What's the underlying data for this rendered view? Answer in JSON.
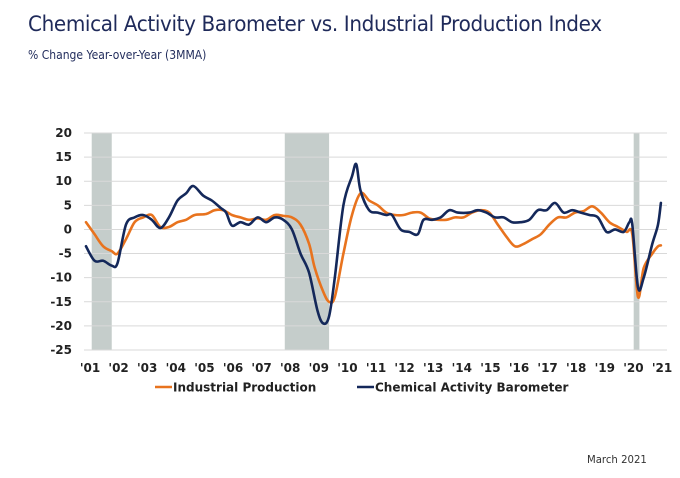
{
  "header": {
    "title": "Chemical Activity Barometer vs. Industrial Production Index",
    "subtitle": "% Change Year-over-Year (3MMA)"
  },
  "footer": {
    "date": "March 2021"
  },
  "chart_data": {
    "type": "line",
    "title": "Chemical Activity Barometer vs. Industrial Production Index",
    "subtitle": "% Change Year-over-Year (3MMA)",
    "xlabel": "",
    "ylabel": "",
    "ylim": [
      -25,
      20
    ],
    "xlim": [
      2001.0,
      2021.2
    ],
    "yticks": [
      20,
      15,
      10,
      5,
      0,
      -5,
      -10,
      -15,
      -20,
      -25
    ],
    "ytick_labels": [
      "20",
      "15",
      "10",
      "5",
      "0",
      "-5",
      "-10",
      "-15",
      "-20",
      "-25"
    ],
    "xticks": [
      2001,
      2002,
      2003,
      2004,
      2005,
      2006,
      2007,
      2008,
      2009,
      2010,
      2011,
      2012,
      2013,
      2014,
      2015,
      2016,
      2017,
      2018,
      2019,
      2020,
      2021
    ],
    "xtick_labels": [
      "'01",
      "'02",
      "'03",
      "'04",
      "'05",
      "'06",
      "'07",
      "'08",
      "'09",
      "'10",
      "'11",
      "'12",
      "'13",
      "'14",
      "'15",
      "'16",
      "'17",
      "'18",
      "'19",
      "'20",
      "'21"
    ],
    "grid": true,
    "legend_position": "bottom",
    "recessions": [
      {
        "start": 2001.2,
        "end": 2001.9
      },
      {
        "start": 2007.95,
        "end": 2009.5
      },
      {
        "start": 2020.15,
        "end": 2020.35
      }
    ],
    "colors": {
      "recession": "#c5cdcb",
      "grid": "#d9d9d9"
    },
    "series": [
      {
        "name": "Industrial Production",
        "color": "#e8731e",
        "points": [
          [
            2001.0,
            1.5
          ],
          [
            2001.3,
            -1
          ],
          [
            2001.6,
            -3.5
          ],
          [
            2001.9,
            -4.5
          ],
          [
            2002.1,
            -5
          ],
          [
            2002.4,
            -2
          ],
          [
            2002.7,
            1.5
          ],
          [
            2003.0,
            2.5
          ],
          [
            2003.3,
            3
          ],
          [
            2003.6,
            0.5
          ],
          [
            2003.9,
            0.5
          ],
          [
            2004.2,
            1.5
          ],
          [
            2004.5,
            2
          ],
          [
            2004.8,
            3
          ],
          [
            2005.2,
            3.2
          ],
          [
            2005.5,
            4
          ],
          [
            2005.8,
            4
          ],
          [
            2006.1,
            3
          ],
          [
            2006.4,
            2.5
          ],
          [
            2006.7,
            2
          ],
          [
            2007.0,
            2.3
          ],
          [
            2007.3,
            2
          ],
          [
            2007.6,
            3
          ],
          [
            2007.9,
            2.8
          ],
          [
            2008.2,
            2.5
          ],
          [
            2008.5,
            1
          ],
          [
            2008.8,
            -3
          ],
          [
            2009.0,
            -8
          ],
          [
            2009.3,
            -13
          ],
          [
            2009.5,
            -15
          ],
          [
            2009.7,
            -14
          ],
          [
            2010.0,
            -5
          ],
          [
            2010.3,
            3
          ],
          [
            2010.6,
            7.5
          ],
          [
            2010.9,
            6
          ],
          [
            2011.2,
            5
          ],
          [
            2011.5,
            3.5
          ],
          [
            2011.8,
            3
          ],
          [
            2012.1,
            3
          ],
          [
            2012.4,
            3.5
          ],
          [
            2012.7,
            3.5
          ],
          [
            2013.0,
            2.3
          ],
          [
            2013.3,
            2
          ],
          [
            2013.6,
            2
          ],
          [
            2013.9,
            2.5
          ],
          [
            2014.2,
            2.5
          ],
          [
            2014.5,
            3.5
          ],
          [
            2014.8,
            4
          ],
          [
            2015.1,
            3.5
          ],
          [
            2015.4,
            1
          ],
          [
            2015.7,
            -1.5
          ],
          [
            2016.0,
            -3.5
          ],
          [
            2016.3,
            -3
          ],
          [
            2016.6,
            -2
          ],
          [
            2016.9,
            -1
          ],
          [
            2017.2,
            1
          ],
          [
            2017.5,
            2.5
          ],
          [
            2017.8,
            2.5
          ],
          [
            2018.1,
            3.5
          ],
          [
            2018.4,
            3.8
          ],
          [
            2018.7,
            4.8
          ],
          [
            2019.0,
            3.5
          ],
          [
            2019.3,
            1.5
          ],
          [
            2019.6,
            0.5
          ],
          [
            2019.9,
            -0.5
          ],
          [
            2020.1,
            -1
          ],
          [
            2020.3,
            -14
          ],
          [
            2020.5,
            -8
          ],
          [
            2020.8,
            -5
          ],
          [
            2021.0,
            -3.5
          ],
          [
            2021.1,
            -3.3
          ]
        ]
      },
      {
        "name": "Chemical Activity Barometer",
        "color": "#14285a",
        "points": [
          [
            2001.0,
            -3.5
          ],
          [
            2001.3,
            -6.5
          ],
          [
            2001.6,
            -6.5
          ],
          [
            2001.9,
            -7.5
          ],
          [
            2002.1,
            -7
          ],
          [
            2002.4,
            1
          ],
          [
            2002.7,
            2.5
          ],
          [
            2003.0,
            3
          ],
          [
            2003.3,
            2
          ],
          [
            2003.6,
            0.3
          ],
          [
            2003.9,
            2.5
          ],
          [
            2004.2,
            6
          ],
          [
            2004.5,
            7.5
          ],
          [
            2004.75,
            9
          ],
          [
            2005.1,
            7
          ],
          [
            2005.4,
            6
          ],
          [
            2005.7,
            4.5
          ],
          [
            2005.9,
            3.5
          ],
          [
            2006.1,
            0.8
          ],
          [
            2006.4,
            1.5
          ],
          [
            2006.7,
            1
          ],
          [
            2007.0,
            2.5
          ],
          [
            2007.3,
            1.5
          ],
          [
            2007.6,
            2.5
          ],
          [
            2007.9,
            2
          ],
          [
            2008.2,
            0
          ],
          [
            2008.5,
            -5
          ],
          [
            2008.8,
            -9
          ],
          [
            2009.1,
            -17
          ],
          [
            2009.3,
            -19.5
          ],
          [
            2009.5,
            -18
          ],
          [
            2009.7,
            -10
          ],
          [
            2010.0,
            5
          ],
          [
            2010.3,
            11
          ],
          [
            2010.45,
            13.5
          ],
          [
            2010.6,
            8
          ],
          [
            2010.9,
            4
          ],
          [
            2011.2,
            3.5
          ],
          [
            2011.5,
            3
          ],
          [
            2011.7,
            3
          ],
          [
            2012.0,
            0
          ],
          [
            2012.3,
            -0.5
          ],
          [
            2012.6,
            -1
          ],
          [
            2012.8,
            2
          ],
          [
            2013.1,
            2
          ],
          [
            2013.4,
            2.5
          ],
          [
            2013.7,
            4
          ],
          [
            2014.0,
            3.5
          ],
          [
            2014.4,
            3.5
          ],
          [
            2014.7,
            4
          ],
          [
            2015.0,
            3.5
          ],
          [
            2015.3,
            2.5
          ],
          [
            2015.6,
            2.5
          ],
          [
            2015.9,
            1.5
          ],
          [
            2016.2,
            1.5
          ],
          [
            2016.5,
            2
          ],
          [
            2016.8,
            4
          ],
          [
            2017.1,
            4
          ],
          [
            2017.4,
            5.5
          ],
          [
            2017.7,
            3.5
          ],
          [
            2018.0,
            4
          ],
          [
            2018.3,
            3.5
          ],
          [
            2018.6,
            3
          ],
          [
            2018.9,
            2.5
          ],
          [
            2019.2,
            -0.5
          ],
          [
            2019.5,
            0
          ],
          [
            2019.8,
            -0.5
          ],
          [
            2020.0,
            1.5
          ],
          [
            2020.1,
            1
          ],
          [
            2020.3,
            -12
          ],
          [
            2020.5,
            -10
          ],
          [
            2020.8,
            -3
          ],
          [
            2021.0,
            1
          ],
          [
            2021.1,
            5.5
          ]
        ]
      }
    ]
  }
}
